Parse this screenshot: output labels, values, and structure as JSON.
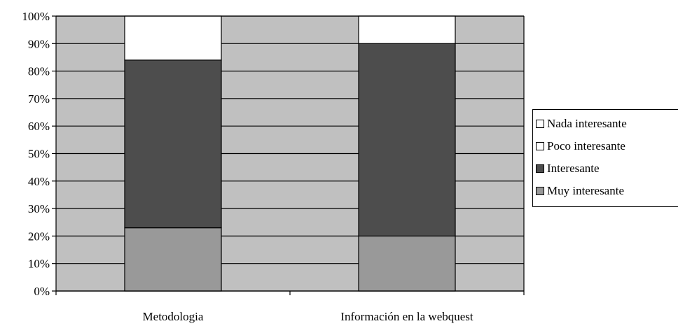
{
  "chart_data": {
    "type": "bar",
    "stacked": true,
    "percent": true,
    "categories": [
      "Metodologia",
      "Información en la webquest"
    ],
    "series": [
      {
        "name": "Muy interesante",
        "values": [
          23,
          20
        ],
        "color": "#999999"
      },
      {
        "name": "Interesante",
        "values": [
          61,
          70
        ],
        "color": "#4d4d4d"
      },
      {
        "name": "Poco interesante",
        "values": [
          16,
          10
        ],
        "color": "#ffffff"
      },
      {
        "name": "Nada interesante",
        "values": [
          0,
          0
        ],
        "color": "#ffffff"
      }
    ],
    "legend_order": [
      "Nada interesante",
      "Poco interesante",
      "Interesante",
      "Muy interesante"
    ],
    "ylim": [
      0,
      100
    ],
    "yticks": [
      "0%",
      "10%",
      "20%",
      "30%",
      "40%",
      "50%",
      "60%",
      "70%",
      "80%",
      "90%",
      "100%"
    ],
    "plot_background": "#c0c0c0",
    "grid": true,
    "legend_position": "right"
  }
}
